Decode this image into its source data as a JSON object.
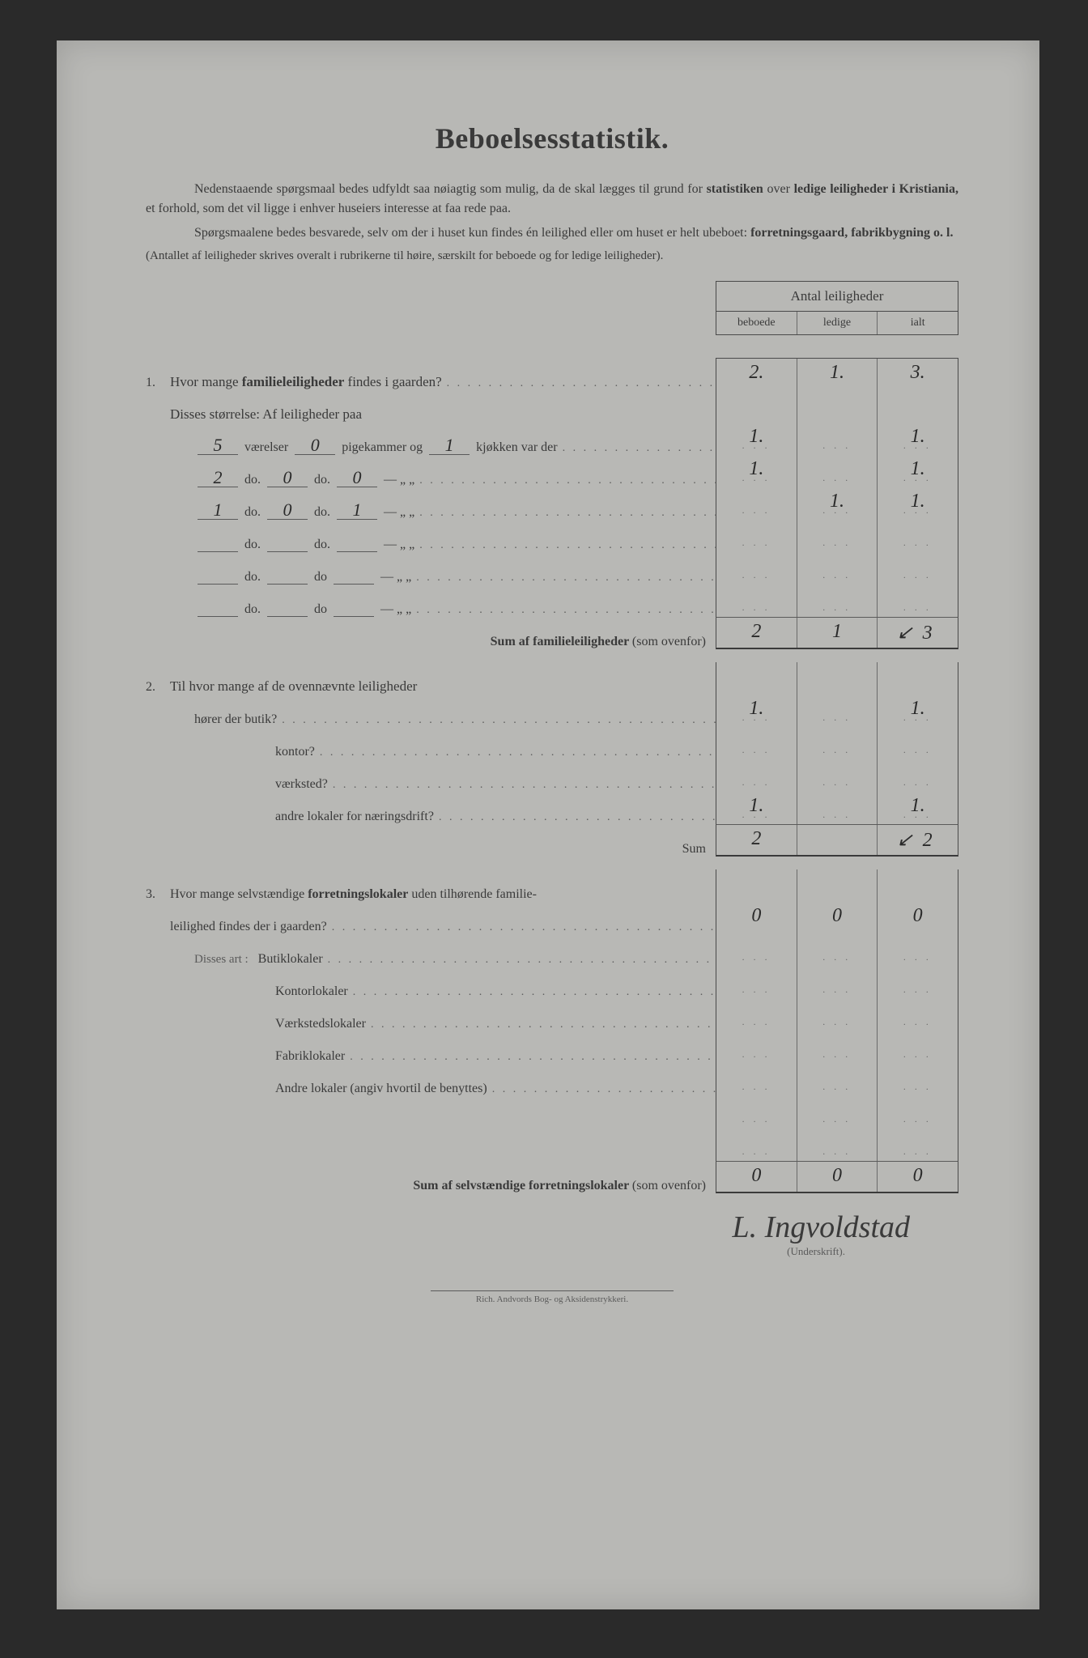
{
  "title": "Beboelsesstatistik.",
  "intro": {
    "p1a": "Nedenstaaende spørgsmaal bedes udfyldt saa nøiagtig som mulig, da de skal lægges til grund for ",
    "p1b": "statistiken",
    "p1c": " over ",
    "p1d": "ledige leiligheder i Kristiania,",
    "p1e": " et forhold, som det vil ligge i enhver huseiers interesse at faa rede paa.",
    "p2a": "Spørgsmaalene bedes besvarede, selv om der i huset kun findes én leilighed eller om huset er helt ubeboet: ",
    "p2b": "forretningsgaard, fabrikbygning o. l.",
    "p3": "(Antallet af leiligheder skrives overalt i rubrikerne til høire, særskilt for beboede og for ledige leiligheder)."
  },
  "header": {
    "top": "Antal leiligheder",
    "c1": "beboede",
    "c2": "ledige",
    "c3": "ialt"
  },
  "q1": {
    "num": "1.",
    "text_a": "Hvor mange ",
    "text_b": "familieleiligheder",
    "text_c": " findes i gaarden?",
    "vals": [
      "2.",
      "1.",
      "3."
    ],
    "sub": "Disses størrelse:   Af leiligheder paa",
    "rows": [
      {
        "v": "5",
        "p": "0",
        "k": "1",
        "label_v": "værelser",
        "label_p": "pigekammer og",
        "label_k": "kjøkken var der",
        "cells": [
          "1.",
          "",
          "1."
        ]
      },
      {
        "v": "2",
        "p": "0",
        "k": "0",
        "label_v": "do.",
        "label_p": "do.",
        "label_k": "—     „   „",
        "cells": [
          "1.",
          "",
          "1."
        ]
      },
      {
        "v": "1",
        "p": "0",
        "k": "1",
        "label_v": "do.",
        "label_p": "do.",
        "label_k": "—     „   „",
        "cells": [
          "",
          "1.",
          "1."
        ]
      },
      {
        "v": "",
        "p": "",
        "k": "",
        "label_v": "do.",
        "label_p": "do.",
        "label_k": "—     „   „",
        "cells": [
          "",
          "",
          ""
        ]
      },
      {
        "v": "",
        "p": "",
        "k": "",
        "label_v": "do.",
        "label_p": "do",
        "label_k": "—     „   „",
        "cells": [
          "",
          "",
          ""
        ]
      },
      {
        "v": "",
        "p": "",
        "k": "",
        "label_v": "do.",
        "label_p": "do",
        "label_k": "—     „   „",
        "cells": [
          "",
          "",
          ""
        ]
      }
    ],
    "sum_label": "Sum af familieleiligheder ",
    "sum_paren": "(som ovenfor)",
    "sum_vals": [
      "2",
      "1",
      "3"
    ]
  },
  "q2": {
    "num": "2.",
    "text": "Til hvor mange af de ovennævnte leiligheder",
    "rows": [
      {
        "label": "hører der butik?",
        "cells": [
          "1.",
          "",
          "1."
        ]
      },
      {
        "label": "kontor?",
        "cells": [
          "",
          "",
          ""
        ],
        "indent": true
      },
      {
        "label": "værksted?",
        "cells": [
          "",
          "",
          ""
        ],
        "indent": true
      },
      {
        "label": "andre lokaler for næringsdrift?",
        "cells": [
          "1.",
          "",
          "1."
        ],
        "indent": true
      }
    ],
    "sum_label": "Sum",
    "sum_vals": [
      "2",
      "",
      "2"
    ]
  },
  "q3": {
    "num": "3.",
    "text_a": "Hvor mange selvstændige ",
    "text_b": "forretningslokaler",
    "text_c": " uden tilhørende familie-",
    "text_d": "leilighed findes der i gaarden?",
    "vals": [
      "0",
      "0",
      "0"
    ],
    "sub": "Disses art :",
    "rows": [
      {
        "label": "Butiklokaler",
        "cells": [
          "",
          "",
          ""
        ]
      },
      {
        "label": "Kontorlokaler",
        "cells": [
          "",
          "",
          ""
        ]
      },
      {
        "label": "Værkstedslokaler",
        "cells": [
          "",
          "",
          ""
        ]
      },
      {
        "label": "Fabriklokaler",
        "cells": [
          "",
          "",
          ""
        ]
      },
      {
        "label": "Andre lokaler (angiv hvortil de benyttes)",
        "cells": [
          "",
          "",
          ""
        ]
      },
      {
        "label": "",
        "cells": [
          "",
          "",
          ""
        ]
      },
      {
        "label": "",
        "cells": [
          "",
          "",
          ""
        ]
      }
    ],
    "sum_label": "Sum af selvstændige forretningslokaler ",
    "sum_paren": "(som ovenfor)",
    "sum_vals": [
      "0",
      "0",
      "0"
    ]
  },
  "signature": {
    "name": "L. Ingvoldstad",
    "label": "(Underskrift)."
  },
  "footer": "Rich. Andvords Bog- og Aksidenstrykkeri."
}
